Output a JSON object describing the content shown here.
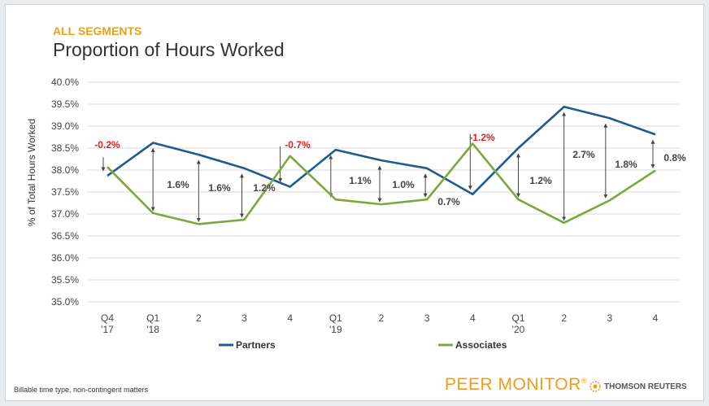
{
  "header": {
    "segment": "ALL SEGMENTS",
    "title": "Proportion of Hours Worked"
  },
  "footnote": "Billable time type, non-contingent matters",
  "brand": {
    "name": "PEER MONITOR",
    "mark": "®",
    "partner": "THOMSON REUTERS"
  },
  "colors": {
    "partners": "#1f5c8c",
    "associates": "#79a83c",
    "negative": "#e02020",
    "accent": "#e8a21a"
  },
  "chart_data": {
    "type": "line",
    "ylabel": "% of Total Hours Worked",
    "ylim": [
      35.0,
      40.0
    ],
    "yticks": [
      "35.0%",
      "35.5%",
      "36.0%",
      "36.5%",
      "37.0%",
      "37.5%",
      "38.0%",
      "38.5%",
      "39.0%",
      "39.5%",
      "40.0%"
    ],
    "categories": [
      [
        "Q4",
        "'17"
      ],
      [
        "Q1",
        "'18"
      ],
      [
        "2",
        ""
      ],
      [
        "3",
        ""
      ],
      [
        "4",
        ""
      ],
      [
        "Q1",
        "'19"
      ],
      [
        "2",
        ""
      ],
      [
        "3",
        ""
      ],
      [
        "4",
        ""
      ],
      [
        "Q1",
        "'20"
      ],
      [
        "2",
        ""
      ],
      [
        "3",
        ""
      ],
      [
        "4",
        ""
      ]
    ],
    "series": [
      {
        "name": "Partners",
        "values": [
          37.87,
          38.62,
          38.35,
          38.04,
          37.62,
          38.46,
          38.22,
          38.04,
          37.45,
          38.5,
          39.44,
          39.18,
          38.81
        ]
      },
      {
        "name": "Associates",
        "values": [
          38.07,
          37.02,
          36.77,
          36.87,
          38.32,
          37.33,
          37.22,
          37.33,
          38.6,
          37.33,
          36.8,
          37.31,
          37.99
        ]
      }
    ],
    "differences": [
      "-0.2%",
      "1.6%",
      "1.6%",
      "1.2%",
      "-0.7%",
      "1.1%",
      "1.0%",
      "0.7%",
      "-1.2%",
      "1.2%",
      "2.7%",
      "1.8%",
      "0.8%"
    ],
    "legend_position": "bottom",
    "grid": true
  }
}
